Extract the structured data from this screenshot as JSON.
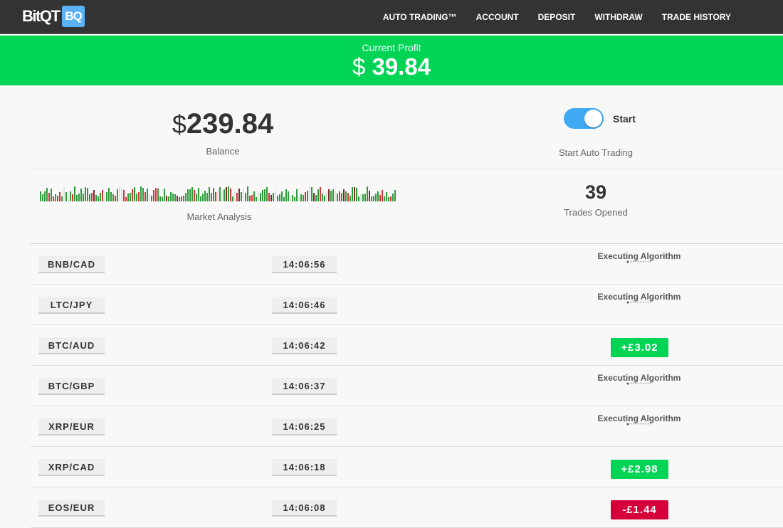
{
  "header": {
    "logo_text": "BitQT",
    "logo_badge": "BQ",
    "nav": [
      "AUTO TRADING™",
      "ACCOUNT",
      "DEPOSIT",
      "WITHDRAW",
      "TRADE HISTORY"
    ]
  },
  "profit": {
    "label": "Current Profit",
    "currency": "$",
    "value": "39.84",
    "color": "#00d455"
  },
  "balance": {
    "currency": "$",
    "value": "239.84",
    "label": "Balance"
  },
  "auto": {
    "toggle_on": true,
    "toggle_label": "Start",
    "label": "Start Auto Trading",
    "accent": "#40a9f3"
  },
  "market": {
    "label": "Market Analysis"
  },
  "trades": {
    "value": "39",
    "label": "Trades Opened"
  },
  "rows": [
    {
      "pair": "BNB/CAD",
      "time": "14:06:56",
      "status": "Executing Algorithm"
    },
    {
      "pair": "LTC/JPY",
      "time": "14:06:46",
      "status": "Executing Algorithm"
    },
    {
      "pair": "BTC/AUD",
      "time": "14:06:42",
      "result": "+£3.02",
      "type": "gain"
    },
    {
      "pair": "BTC/GBP",
      "time": "14:06:37",
      "status": "Executing Algorithm"
    },
    {
      "pair": "XRP/EUR",
      "time": "14:06:25",
      "status": "Executing Algorithm"
    },
    {
      "pair": "XRP/CAD",
      "time": "14:06:18",
      "result": "+£2.98",
      "type": "gain"
    },
    {
      "pair": "EOS/EUR",
      "time": "14:06:08",
      "result": "-£1.44",
      "type": "loss"
    }
  ],
  "colors": {
    "gain": "#00d455",
    "loss": "#d5003a"
  }
}
